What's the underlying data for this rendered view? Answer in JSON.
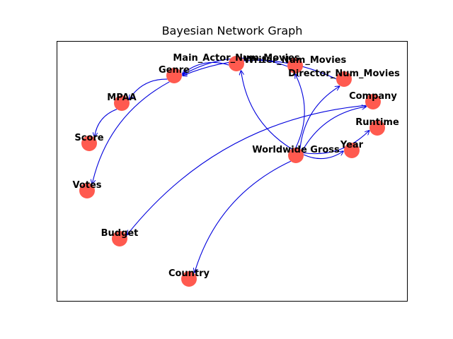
{
  "title": "Bayesian Network Graph",
  "colors": {
    "node": "#ff5a4f",
    "edge": "#0000dd",
    "frame": "#000000",
    "background": "#ffffff"
  },
  "nodes": [
    {
      "id": "main_actor",
      "label": "Main_Actor_Num_Movies"
    },
    {
      "id": "writer",
      "label": "Writer_Num_Movies"
    },
    {
      "id": "director",
      "label": "Director_Num_Movies"
    },
    {
      "id": "genre",
      "label": "Genre"
    },
    {
      "id": "mpaa",
      "label": "MPAA"
    },
    {
      "id": "company",
      "label": "Company"
    },
    {
      "id": "runtime",
      "label": "Runtime"
    },
    {
      "id": "score",
      "label": "Score"
    },
    {
      "id": "worldwide_gross",
      "label": "Worldwide Gross"
    },
    {
      "id": "year",
      "label": "Year"
    },
    {
      "id": "votes",
      "label": "Votes"
    },
    {
      "id": "budget",
      "label": "Budget"
    },
    {
      "id": "country",
      "label": "Country"
    }
  ],
  "edges": [
    {
      "from": "main_actor",
      "to": "genre"
    },
    {
      "from": "writer",
      "to": "genre"
    },
    {
      "from": "director",
      "to": "genre"
    },
    {
      "from": "genre",
      "to": "mpaa"
    },
    {
      "from": "mpaa",
      "to": "score"
    },
    {
      "from": "genre",
      "to": "votes"
    },
    {
      "from": "worldwide_gross",
      "to": "main_actor"
    },
    {
      "from": "worldwide_gross",
      "to": "writer"
    },
    {
      "from": "worldwide_gross",
      "to": "director"
    },
    {
      "from": "worldwide_gross",
      "to": "company"
    },
    {
      "from": "worldwide_gross",
      "to": "runtime"
    },
    {
      "from": "worldwide_gross",
      "to": "year"
    },
    {
      "from": "worldwide_gross",
      "to": "country"
    },
    {
      "from": "company",
      "to": "budget"
    }
  ]
}
